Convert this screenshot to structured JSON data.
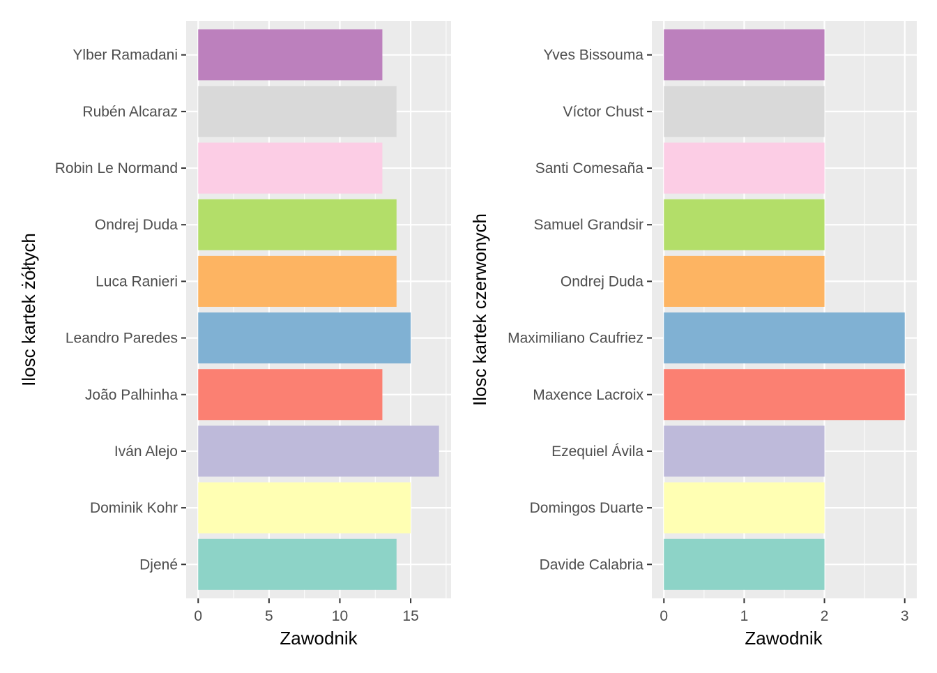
{
  "chart_data": [
    {
      "type": "bar",
      "orientation": "horizontal",
      "xlabel": "Zawodnik",
      "ylabel": "Ilosc kartek żółtych",
      "categories": [
        "Djené",
        "Dominik Kohr",
        "Iván Alejo",
        "João Palhinha",
        "Leandro Paredes",
        "Luca Ranieri",
        "Ondrej Duda",
        "Robin Le Normand",
        "Rubén Alcaraz",
        "Ylber Ramadani"
      ],
      "values": [
        14,
        15,
        17,
        13,
        15,
        14,
        14,
        13,
        14,
        13
      ],
      "colors": [
        "#8DD3C7",
        "#FFFFB3",
        "#BEBADA",
        "#FB8072",
        "#80B1D3",
        "#FDB462",
        "#B3DE69",
        "#FCCDE5",
        "#D9D9D9",
        "#BC80BD"
      ],
      "xlim": [
        -0.85,
        17.85
      ],
      "xticks": [
        "0",
        "5",
        "10",
        "15"
      ],
      "grid": true,
      "legend": "none"
    },
    {
      "type": "bar",
      "orientation": "horizontal",
      "xlabel": "Zawodnik",
      "ylabel": "Ilosc kartek czerwonych",
      "categories": [
        "Davide Calabria",
        "Domingos Duarte",
        "Ezequiel Ávila",
        "Maxence Lacroix",
        "Maximiliano Caufriez",
        "Ondrej Duda",
        "Samuel Grandsir",
        "Santi Comesaña",
        "Víctor Chust",
        "Yves Bissouma"
      ],
      "values": [
        2,
        2,
        2,
        3,
        3,
        2,
        2,
        2,
        2,
        2
      ],
      "colors": [
        "#8DD3C7",
        "#FFFFB3",
        "#BEBADA",
        "#FB8072",
        "#80B1D3",
        "#FDB462",
        "#B3DE69",
        "#FCCDE5",
        "#D9D9D9",
        "#BC80BD"
      ],
      "xlim": [
        -0.15,
        3.15
      ],
      "xticks": [
        "0",
        "1",
        "2",
        "3"
      ],
      "grid": true,
      "legend": "none"
    }
  ]
}
